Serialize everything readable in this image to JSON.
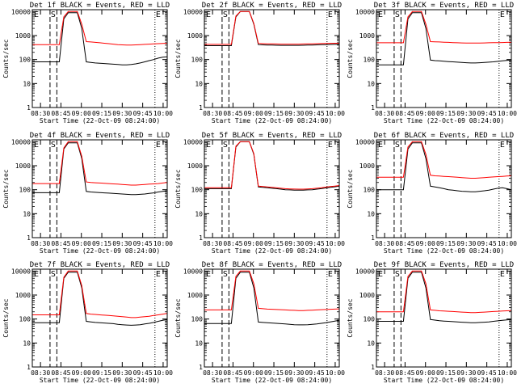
{
  "chart_data": [
    {
      "type": "line",
      "title": "Det 1f BLACK = Events, RED = LLD",
      "xlabel": "Start Time (22-Oct-09 08:24:00)",
      "ylabel": "Counts/sec",
      "yscale": "log",
      "ylim": [
        1,
        12000
      ],
      "x_ticks": [
        "08:30",
        "08:45",
        "09:00",
        "09:15",
        "09:30",
        "09:45",
        "10:00"
      ],
      "y_ticks": [
        "1",
        "10",
        "100",
        "1000",
        "10000"
      ],
      "markers": [
        {
          "label": "E",
          "time": "08:24"
        },
        {
          "label": "S",
          "time": "08:37"
        },
        {
          "label": "",
          "time": "08:42"
        },
        {
          "label": "E",
          "time": "09:54"
        }
      ],
      "series": [
        {
          "name": "Events",
          "color": "#000000",
          "values": [
            80,
            80,
            80,
            80,
            80,
            80,
            80,
            5000,
            9000,
            9000,
            9000,
            2000,
            80,
            76,
            72,
            70,
            68,
            66,
            64,
            62,
            60,
            60,
            62,
            66,
            72,
            80,
            90,
            100,
            115,
            125,
            130
          ]
        },
        {
          "name": "LLD",
          "color": "#ff0000",
          "values": [
            420,
            420,
            420,
            420,
            420,
            420,
            420,
            6000,
            10000,
            10000,
            10000,
            3000,
            560,
            540,
            520,
            500,
            480,
            460,
            440,
            420,
            410,
            400,
            400,
            410,
            420,
            430,
            440,
            450,
            460,
            470,
            480
          ]
        }
      ]
    },
    {
      "type": "line",
      "title": "Det 2f BLACK = Events, RED = LLD",
      "xlabel": "Start Time (22-Oct-09 08:24:00)",
      "ylabel": "Counts/sec",
      "yscale": "log",
      "ylim": [
        1,
        12000
      ],
      "x_ticks": [
        "08:30",
        "08:45",
        "09:00",
        "09:15",
        "09:30",
        "09:45",
        "10:00"
      ],
      "y_ticks": [
        "1",
        "10",
        "100",
        "1000",
        "10000"
      ],
      "markers": [
        {
          "label": "E",
          "time": "08:24"
        },
        {
          "label": "S",
          "time": "08:37"
        },
        {
          "label": "",
          "time": "08:42"
        },
        {
          "label": "E",
          "time": "09:54"
        }
      ],
      "series": [
        {
          "name": "Events",
          "color": "#000000",
          "values": [
            380,
            380,
            380,
            380,
            380,
            380,
            380,
            6000,
            10000,
            10000,
            10000,
            3000,
            420,
            410,
            400,
            400,
            395,
            390,
            390,
            390,
            390,
            390,
            395,
            400,
            405,
            410,
            415,
            420,
            425,
            430,
            430
          ]
        },
        {
          "name": "LLD",
          "color": "#ff0000",
          "values": [
            430,
            430,
            430,
            430,
            430,
            430,
            430,
            6500,
            10000,
            10000,
            10000,
            3200,
            470,
            460,
            450,
            450,
            445,
            440,
            440,
            440,
            440,
            440,
            445,
            450,
            455,
            460,
            465,
            470,
            475,
            480,
            480
          ]
        }
      ]
    },
    {
      "type": "line",
      "title": "Det 3f BLACK = Events, RED = LLD",
      "xlabel": "Start Time (22-Oct-09 08:24:00)",
      "ylabel": "Counts/sec",
      "yscale": "log",
      "ylim": [
        1,
        12000
      ],
      "x_ticks": [
        "08:30",
        "08:45",
        "09:00",
        "09:15",
        "09:30",
        "09:45",
        "10:00"
      ],
      "y_ticks": [
        "1",
        "10",
        "100",
        "1000",
        "10000"
      ],
      "markers": [
        {
          "label": "E",
          "time": "08:24"
        },
        {
          "label": "S",
          "time": "08:37"
        },
        {
          "label": "",
          "time": "08:42"
        },
        {
          "label": "E",
          "time": "09:54"
        }
      ],
      "series": [
        {
          "name": "Events",
          "color": "#000000",
          "values": [
            60,
            60,
            60,
            60,
            60,
            60,
            60,
            5000,
            9000,
            9000,
            9000,
            2000,
            95,
            90,
            88,
            85,
            82,
            80,
            78,
            76,
            74,
            72,
            72,
            74,
            76,
            78,
            80,
            84,
            88,
            92,
            95
          ]
        },
        {
          "name": "LLD",
          "color": "#ff0000",
          "values": [
            500,
            500,
            500,
            500,
            500,
            500,
            500,
            6000,
            10000,
            10000,
            10000,
            3000,
            560,
            550,
            540,
            530,
            520,
            510,
            500,
            495,
            490,
            485,
            485,
            490,
            495,
            500,
            505,
            510,
            515,
            520,
            520
          ]
        }
      ]
    },
    {
      "type": "line",
      "title": "Det 4f BLACK = Events, RED = LLD",
      "xlabel": "Start Time (22-Oct-09 08:24:00)",
      "ylabel": "Counts/sec",
      "yscale": "log",
      "ylim": [
        1,
        12000
      ],
      "x_ticks": [
        "08:30",
        "08:45",
        "09:00",
        "09:15",
        "09:30",
        "09:45",
        "10:00"
      ],
      "y_ticks": [
        "1",
        "10",
        "100",
        "1000",
        "10000"
      ],
      "markers": [
        {
          "label": "E",
          "time": "08:24"
        },
        {
          "label": "S",
          "time": "08:37"
        },
        {
          "label": "",
          "time": "08:42"
        },
        {
          "label": "E",
          "time": "09:54"
        }
      ],
      "series": [
        {
          "name": "Events",
          "color": "#000000",
          "values": [
            75,
            75,
            75,
            75,
            75,
            75,
            75,
            5000,
            9000,
            9000,
            9000,
            2000,
            85,
            80,
            78,
            76,
            74,
            72,
            70,
            68,
            66,
            64,
            62,
            62,
            64,
            66,
            70,
            74,
            80,
            85,
            90
          ]
        },
        {
          "name": "LLD",
          "color": "#ff0000",
          "values": [
            180,
            180,
            180,
            180,
            180,
            180,
            180,
            5500,
            10000,
            10000,
            10000,
            2500,
            210,
            200,
            195,
            190,
            185,
            180,
            175,
            170,
            165,
            160,
            155,
            155,
            160,
            165,
            170,
            175,
            180,
            190,
            200
          ]
        }
      ]
    },
    {
      "type": "line",
      "title": "Det 5f BLACK = Events, RED = LLD",
      "xlabel": "Start Time (22-Oct-09 08:24:00)",
      "ylabel": "Counts/sec",
      "yscale": "log",
      "ylim": [
        1,
        12000
      ],
      "x_ticks": [
        "08:30",
        "08:45",
        "09:00",
        "09:15",
        "09:30",
        "09:45",
        "10:00"
      ],
      "y_ticks": [
        "1",
        "10",
        "100",
        "1000",
        "10000"
      ],
      "markers": [
        {
          "label": "E",
          "time": "08:24"
        },
        {
          "label": "S",
          "time": "08:37"
        },
        {
          "label": "",
          "time": "08:42"
        },
        {
          "label": "E",
          "time": "09:54"
        }
      ],
      "series": [
        {
          "name": "Events",
          "color": "#000000",
          "values": [
            110,
            110,
            110,
            110,
            110,
            110,
            110,
            6000,
            10000,
            10000,
            10000,
            3000,
            130,
            125,
            120,
            115,
            110,
            105,
            100,
            98,
            96,
            95,
            95,
            98,
            100,
            105,
            110,
            118,
            125,
            132,
            140
          ]
        },
        {
          "name": "LLD",
          "color": "#ff0000",
          "values": [
            120,
            120,
            120,
            120,
            120,
            120,
            120,
            6500,
            10000,
            10000,
            10000,
            3200,
            140,
            135,
            130,
            125,
            120,
            115,
            110,
            108,
            106,
            105,
            105,
            108,
            110,
            115,
            120,
            128,
            135,
            142,
            150
          ]
        }
      ]
    },
    {
      "type": "line",
      "title": "Det 6f BLACK = Events, RED = LLD",
      "xlabel": "Start Time (22-Oct-09 08:24:00)",
      "ylabel": "Counts/sec",
      "yscale": "log",
      "ylim": [
        1,
        12000
      ],
      "x_ticks": [
        "08:30",
        "08:45",
        "09:00",
        "09:15",
        "09:30",
        "09:45",
        "10:00"
      ],
      "y_ticks": [
        "1",
        "10",
        "100",
        "1000",
        "10000"
      ],
      "markers": [
        {
          "label": "E",
          "time": "08:24"
        },
        {
          "label": "S",
          "time": "08:37"
        },
        {
          "label": "",
          "time": "08:42"
        },
        {
          "label": "E",
          "time": "09:54"
        }
      ],
      "series": [
        {
          "name": "Events",
          "color": "#000000",
          "values": [
            100,
            100,
            100,
            100,
            100,
            100,
            100,
            5000,
            9000,
            9000,
            9000,
            2000,
            140,
            130,
            120,
            110,
            100,
            95,
            90,
            86,
            84,
            82,
            82,
            86,
            90,
            96,
            105,
            115,
            120,
            110,
            100
          ]
        },
        {
          "name": "LLD",
          "color": "#ff0000",
          "values": [
            330,
            330,
            330,
            330,
            330,
            330,
            330,
            6000,
            10000,
            10000,
            10000,
            3000,
            400,
            380,
            370,
            360,
            350,
            340,
            330,
            320,
            310,
            300,
            300,
            310,
            320,
            330,
            340,
            350,
            360,
            370,
            380
          ]
        }
      ]
    },
    {
      "type": "line",
      "title": "Det 7f BLACK = Events, RED = LLD",
      "xlabel": "Start Time (22-Oct-09 08:24:00)",
      "ylabel": "Counts/sec",
      "yscale": "log",
      "ylim": [
        1,
        12000
      ],
      "x_ticks": [
        "08:30",
        "08:45",
        "09:00",
        "09:15",
        "09:30",
        "09:45",
        "10:00"
      ],
      "y_ticks": [
        "1",
        "10",
        "100",
        "1000",
        "10000"
      ],
      "markers": [
        {
          "label": "E",
          "time": "08:24"
        },
        {
          "label": "S",
          "time": "08:37"
        },
        {
          "label": "",
          "time": "08:42"
        },
        {
          "label": "E",
          "time": "09:54"
        }
      ],
      "series": [
        {
          "name": "Events",
          "color": "#000000",
          "values": [
            70,
            70,
            70,
            70,
            70,
            70,
            70,
            5000,
            9000,
            9000,
            9000,
            2000,
            80,
            76,
            72,
            70,
            68,
            66,
            64,
            60,
            58,
            56,
            55,
            56,
            58,
            62,
            66,
            72,
            80,
            88,
            95
          ]
        },
        {
          "name": "LLD",
          "color": "#ff0000",
          "values": [
            150,
            150,
            150,
            150,
            150,
            150,
            150,
            5500,
            10000,
            10000,
            10000,
            2500,
            170,
            160,
            155,
            150,
            145,
            140,
            135,
            130,
            125,
            120,
            115,
            115,
            120,
            125,
            130,
            140,
            150,
            160,
            170
          ]
        }
      ]
    },
    {
      "type": "line",
      "title": "Det 8f BLACK = Events, RED = LLD",
      "xlabel": "Start Time (22-Oct-09 08:24:00)",
      "ylabel": "Counts/sec",
      "yscale": "log",
      "ylim": [
        1,
        12000
      ],
      "x_ticks": [
        "08:30",
        "08:45",
        "09:00",
        "09:15",
        "09:30",
        "09:45",
        "10:00"
      ],
      "y_ticks": [
        "1",
        "10",
        "100",
        "1000",
        "10000"
      ],
      "markers": [
        {
          "label": "E",
          "time": "08:24"
        },
        {
          "label": "S",
          "time": "08:37"
        },
        {
          "label": "",
          "time": "08:42"
        },
        {
          "label": "E",
          "time": "09:54"
        }
      ],
      "series": [
        {
          "name": "Events",
          "color": "#000000",
          "values": [
            65,
            65,
            65,
            65,
            65,
            65,
            65,
            5000,
            9000,
            9000,
            9000,
            2000,
            75,
            72,
            70,
            68,
            66,
            64,
            62,
            60,
            58,
            57,
            57,
            58,
            60,
            62,
            66,
            70,
            76,
            82,
            88
          ]
        },
        {
          "name": "LLD",
          "color": "#ff0000",
          "values": [
            240,
            240,
            240,
            240,
            240,
            240,
            240,
            6000,
            10000,
            10000,
            10000,
            3000,
            280,
            270,
            260,
            255,
            250,
            245,
            240,
            235,
            230,
            225,
            225,
            230,
            235,
            240,
            245,
            250,
            255,
            260,
            265
          ]
        }
      ]
    },
    {
      "type": "line",
      "title": "Det 9f BLACK = Events, RED = LLD",
      "xlabel": "Start Time (22-Oct-09 08:24:00)",
      "ylabel": "Counts/sec",
      "yscale": "log",
      "ylim": [
        1,
        12000
      ],
      "x_ticks": [
        "08:30",
        "08:45",
        "09:00",
        "09:15",
        "09:30",
        "09:45",
        "10:00"
      ],
      "y_ticks": [
        "1",
        "10",
        "100",
        "1000",
        "10000"
      ],
      "markers": [
        {
          "label": "E",
          "time": "08:24"
        },
        {
          "label": "S",
          "time": "08:37"
        },
        {
          "label": "",
          "time": "08:42"
        },
        {
          "label": "E",
          "time": "09:54"
        }
      ],
      "series": [
        {
          "name": "Events",
          "color": "#000000",
          "values": [
            80,
            80,
            80,
            80,
            80,
            80,
            80,
            5000,
            9000,
            9000,
            9000,
            2000,
            95,
            90,
            85,
            82,
            80,
            78,
            76,
            74,
            72,
            70,
            70,
            72,
            74,
            76,
            80,
            84,
            88,
            92,
            95
          ]
        },
        {
          "name": "LLD",
          "color": "#ff0000",
          "values": [
            200,
            200,
            200,
            200,
            200,
            200,
            200,
            6000,
            10000,
            10000,
            10000,
            3000,
            240,
            230,
            220,
            215,
            210,
            205,
            200,
            195,
            190,
            185,
            185,
            190,
            195,
            200,
            205,
            210,
            215,
            220,
            225
          ]
        }
      ]
    }
  ]
}
